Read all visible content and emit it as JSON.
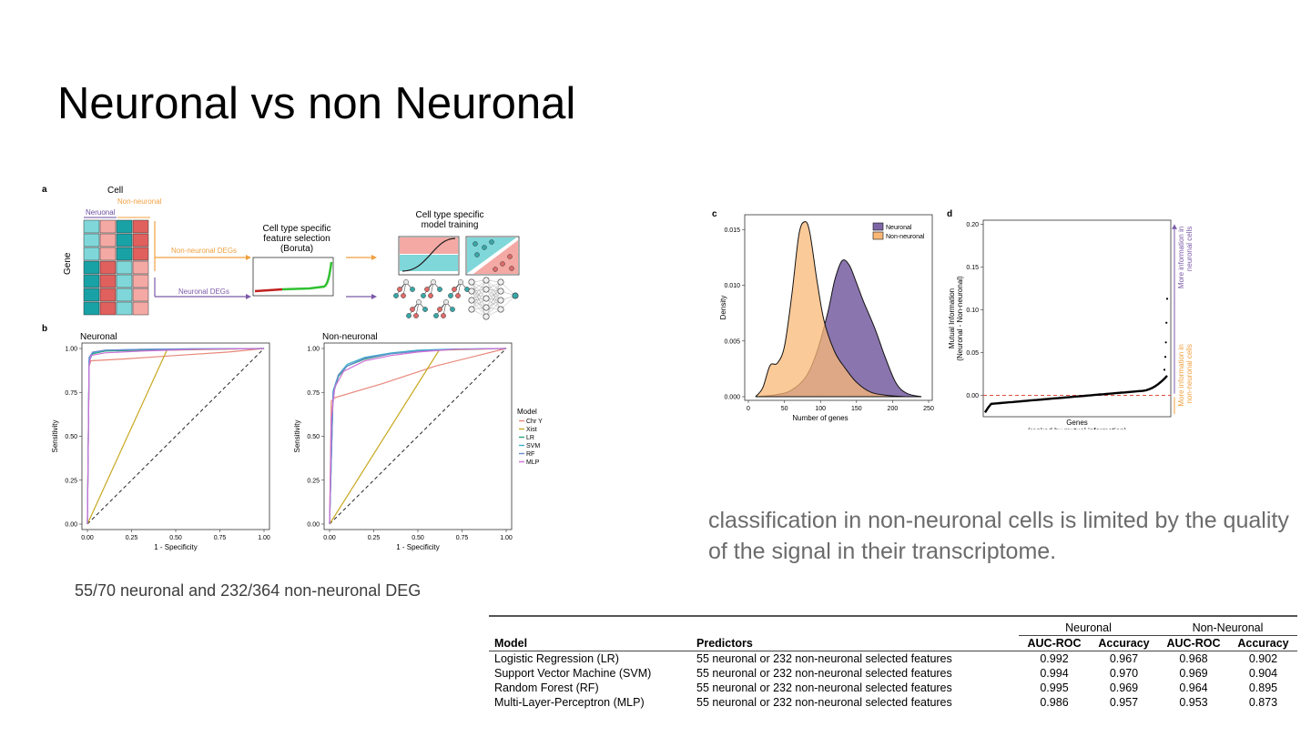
{
  "slide": {
    "title": "Neuronal vs non Neuronal",
    "caption_deg": "55/70 neuronal and 232/364 non-neuronal DEG",
    "caption_classification": "classification in non-neuronal cells is limited by the quality of the signal in their transcriptome."
  },
  "panel_a": {
    "label": "a",
    "cell_label": "Cell",
    "gene_label": "Gene",
    "neuronal_col": "Neruonal",
    "non_neuronal_col": "Non-neuronal",
    "non_neuronal_degs": "Non-neuronal DEGs",
    "neuronal_degs": "Neuronal DEGs",
    "feature_selection": [
      "Cell type specific",
      "feature selection",
      "(Boruta)"
    ],
    "model_training": [
      "Cell type specific",
      "model training"
    ]
  },
  "chart_data": [
    {
      "id": "panel_b_neuronal",
      "type": "line",
      "panel_label": "b",
      "title": "Neuronal",
      "xlabel": "1 - Specificity",
      "ylabel": "Sensitivity",
      "xlim": [
        0,
        1
      ],
      "ylim": [
        0,
        1
      ],
      "xticks": [
        "0.00",
        "0.25",
        "0.50",
        "0.75",
        "1.00"
      ],
      "yticks": [
        "0.00",
        "0.25",
        "0.50",
        "0.75",
        "1.00"
      ],
      "series": [
        {
          "name": "Chr Y",
          "color": "#e8877a",
          "x": [
            0,
            0.01,
            0.02,
            0.2,
            0.5,
            0.8,
            1
          ],
          "y": [
            0,
            0.9,
            0.93,
            0.94,
            0.96,
            0.98,
            1
          ]
        },
        {
          "name": "Xist",
          "color": "#c8a820",
          "x": [
            0,
            0.45,
            1
          ],
          "y": [
            0,
            0.99,
            1
          ]
        },
        {
          "name": "LR",
          "color": "#2aa37a",
          "x": [
            0,
            0.01,
            0.03,
            0.1,
            0.3,
            0.6,
            1
          ],
          "y": [
            0,
            0.93,
            0.97,
            0.985,
            0.99,
            0.995,
            1
          ]
        },
        {
          "name": "SVM",
          "color": "#3ab0c8",
          "x": [
            0,
            0.01,
            0.03,
            0.1,
            0.3,
            0.6,
            1
          ],
          "y": [
            0,
            0.94,
            0.975,
            0.99,
            0.995,
            0.998,
            1
          ]
        },
        {
          "name": "RF",
          "color": "#6a8ad0",
          "x": [
            0,
            0.01,
            0.03,
            0.1,
            0.3,
            0.6,
            1
          ],
          "y": [
            0,
            0.95,
            0.98,
            0.99,
            0.995,
            0.998,
            1
          ]
        },
        {
          "name": "MLP",
          "color": "#d070d8",
          "x": [
            0,
            0.01,
            0.02,
            0.1,
            0.3,
            0.6,
            1
          ],
          "y": [
            0,
            0.9,
            0.96,
            0.975,
            0.985,
            0.995,
            1
          ]
        }
      ]
    },
    {
      "id": "panel_b_non_neuronal",
      "type": "line",
      "title": "Non-neuronal",
      "xlabel": "1 - Specificity",
      "ylabel": "Sensitivity",
      "xlim": [
        0,
        1
      ],
      "ylim": [
        0,
        1
      ],
      "xticks": [
        "0.00",
        "0.25",
        "0.50",
        "0.75",
        "1.00"
      ],
      "yticks": [
        "0.00",
        "0.25",
        "0.50",
        "0.75",
        "1.00"
      ],
      "legend": {
        "title": "Model",
        "placement": "right",
        "entries": [
          "Chr Y",
          "Xist",
          "LR",
          "SVM",
          "RF",
          "MLP"
        ]
      },
      "series": [
        {
          "name": "Chr Y",
          "color": "#e8877a",
          "x": [
            0,
            0.01,
            0.03,
            0.3,
            0.6,
            1
          ],
          "y": [
            0,
            0.7,
            0.72,
            0.8,
            0.9,
            1
          ]
        },
        {
          "name": "Xist",
          "color": "#c8a820",
          "x": [
            0,
            0.62,
            1
          ],
          "y": [
            0,
            0.99,
            1
          ]
        },
        {
          "name": "LR",
          "color": "#2aa37a",
          "x": [
            0,
            0.02,
            0.05,
            0.1,
            0.2,
            0.35,
            0.5,
            0.7,
            1
          ],
          "y": [
            0,
            0.74,
            0.84,
            0.9,
            0.94,
            0.97,
            0.985,
            0.995,
            1
          ]
        },
        {
          "name": "SVM",
          "color": "#3ab0c8",
          "x": [
            0,
            0.02,
            0.05,
            0.1,
            0.2,
            0.35,
            0.5,
            0.7,
            1
          ],
          "y": [
            0,
            0.76,
            0.85,
            0.91,
            0.95,
            0.975,
            0.99,
            0.997,
            1
          ]
        },
        {
          "name": "RF",
          "color": "#6a8ad0",
          "x": [
            0,
            0.02,
            0.05,
            0.1,
            0.2,
            0.35,
            0.5,
            0.7,
            1
          ],
          "y": [
            0,
            0.75,
            0.85,
            0.9,
            0.945,
            0.97,
            0.985,
            0.995,
            1
          ]
        },
        {
          "name": "MLP",
          "color": "#d070d8",
          "x": [
            0,
            0.01,
            0.03,
            0.08,
            0.2,
            0.35,
            0.5,
            0.7,
            1
          ],
          "y": [
            0,
            0.6,
            0.78,
            0.87,
            0.93,
            0.96,
            0.98,
            0.995,
            1
          ]
        }
      ]
    },
    {
      "id": "panel_c",
      "type": "area",
      "panel_label": "c",
      "xlabel": "Number of genes",
      "ylabel": "Density",
      "xlim": [
        0,
        250
      ],
      "ylim": [
        0,
        0.016
      ],
      "xticks": [
        "0",
        "50",
        "100",
        "150",
        "200",
        "250"
      ],
      "yticks": [
        "0.000",
        "0.005",
        "0.010",
        "0.015"
      ],
      "legend": {
        "placement": "top-right",
        "entries": [
          "Neuronal",
          "Non-neuronal"
        ]
      },
      "series": [
        {
          "name": "Neuronal",
          "color": "#7e66a6",
          "x": [
            10,
            40,
            60,
            80,
            95,
            110,
            120,
            130,
            140,
            150,
            160,
            175,
            190,
            205,
            220,
            240
          ],
          "y": [
            0,
            0.0002,
            0.0006,
            0.0018,
            0.004,
            0.0075,
            0.0105,
            0.0122,
            0.0118,
            0.0102,
            0.0085,
            0.0062,
            0.0035,
            0.0012,
            0.0003,
            0
          ]
        },
        {
          "name": "Non-neuronal",
          "color": "#f9b877",
          "x": [
            10,
            20,
            30,
            40,
            50,
            60,
            70,
            78,
            85,
            95,
            105,
            120,
            135,
            150,
            170,
            195,
            220
          ],
          "y": [
            0,
            0.0008,
            0.0028,
            0.003,
            0.0045,
            0.009,
            0.0145,
            0.0157,
            0.0148,
            0.0105,
            0.0068,
            0.004,
            0.0025,
            0.0013,
            0.0004,
            0.0001,
            0
          ]
        }
      ]
    },
    {
      "id": "panel_d",
      "type": "scatter",
      "panel_label": "d",
      "xlabel": "Genes\n(ranked by mutual information)",
      "ylabel": "Mutual Information\n(Neuronal - Non-neuronal)",
      "ylim": [
        -0.025,
        0.205
      ],
      "yticks": [
        "0.00",
        "0.05",
        "0.10",
        "0.15",
        "0.20"
      ],
      "annotations": [
        "More information in neuronal cells",
        "More information in non-neuronal cells"
      ],
      "reference_line": {
        "y": 0,
        "style": "dashed",
        "color": "#e05040"
      },
      "outliers": [
        {
          "x": 0.985,
          "y": 0.03
        },
        {
          "x": 0.99,
          "y": 0.045
        },
        {
          "x": 0.993,
          "y": 0.062
        },
        {
          "x": 0.996,
          "y": 0.085
        },
        {
          "x": 1.0,
          "y": 0.113
        }
      ]
    }
  ],
  "table": {
    "group_headers": [
      "Neuronal",
      "Non-Neuronal"
    ],
    "columns": [
      "Model",
      "Predictors",
      "AUC-ROC",
      "Accuracy",
      "AUC-ROC",
      "Accuracy"
    ],
    "rows": [
      [
        "Logistic Regression (LR)",
        "55 neuronal or 232 non-neuronal selected features",
        "0.992",
        "0.967",
        "0.968",
        "0.902"
      ],
      [
        "Support Vector Machine (SVM)",
        "55 neuronal or 232 non-neuronal selected features",
        "0.994",
        "0.970",
        "0.969",
        "0.904"
      ],
      [
        "Random Forest (RF)",
        "55 neuronal or 232 non-neuronal selected features",
        "0.995",
        "0.969",
        "0.964",
        "0.895"
      ],
      [
        "Multi-Layer-Perceptron (MLP)",
        "55 neuronal or 232 non-neuronal selected features",
        "0.986",
        "0.957",
        "0.953",
        "0.873"
      ]
    ]
  }
}
